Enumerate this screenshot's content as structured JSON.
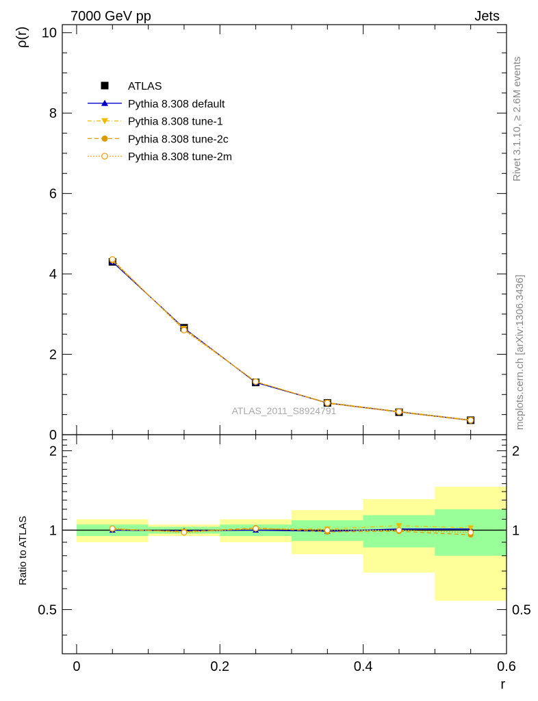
{
  "header": {
    "left": "7000 GeV pp",
    "right": "Jets"
  },
  "side_labels": {
    "top": "Rivet 3.1.10, ≥ 2.6M events",
    "bottom": "mcplots.cern.ch [arXiv:1306.3436]"
  },
  "watermark": "ATLAS_2011_S8924791",
  "colors": {
    "atlas": "#000000",
    "default": "#0000cc",
    "tune1": "#eebb00",
    "tune2c": "#dd9900",
    "tune2m": "#ee9900",
    "band_inner": "#99ff99",
    "band_outer": "#ffff99"
  },
  "chart_data": [
    {
      "type": "line",
      "panel": "main",
      "ylabel": "ρ(r)",
      "xlabel": "",
      "xlim": [
        -0.02,
        0.6
      ],
      "ylim": [
        0,
        10.2
      ],
      "y_ticks": [
        "0",
        "2",
        "4",
        "6",
        "8",
        "10"
      ],
      "x": [
        0.05,
        0.15,
        0.25,
        0.35,
        0.45,
        0.55
      ],
      "legend_position": "top-left",
      "series": [
        {
          "name": "ATLAS",
          "key": "atlas",
          "values": [
            4.3,
            2.66,
            1.3,
            0.79,
            0.56,
            0.36
          ]
        },
        {
          "name": "Pythia 8.308 default",
          "key": "default",
          "values": [
            4.3,
            2.65,
            1.3,
            0.79,
            0.57,
            0.36
          ]
        },
        {
          "name": "Pythia 8.308 tune-1",
          "key": "tune1",
          "values": [
            4.32,
            2.64,
            1.31,
            0.8,
            0.58,
            0.37
          ]
        },
        {
          "name": "Pythia 8.308 tune-2c",
          "key": "tune2c",
          "values": [
            4.34,
            2.62,
            1.32,
            0.78,
            0.56,
            0.35
          ]
        },
        {
          "name": "Pythia 8.308 tune-2m",
          "key": "tune2m",
          "values": [
            4.36,
            2.6,
            1.32,
            0.79,
            0.57,
            0.36
          ]
        }
      ]
    },
    {
      "type": "line",
      "panel": "ratio",
      "ylabel": "Ratio to ATLAS",
      "xlabel": "r",
      "xlim": [
        -0.02,
        0.6
      ],
      "ylim": [
        0.34,
        2.3
      ],
      "y_ticks": [
        "0.5",
        "1",
        "2"
      ],
      "x_ticks": [
        "0",
        "0.2",
        "0.4",
        "0.6"
      ],
      "x": [
        0.05,
        0.15,
        0.25,
        0.35,
        0.45,
        0.55
      ],
      "bins": [
        [
          0,
          0.1
        ],
        [
          0.1,
          0.2
        ],
        [
          0.2,
          0.3
        ],
        [
          0.3,
          0.4
        ],
        [
          0.4,
          0.5
        ],
        [
          0.5,
          0.6
        ]
      ],
      "band_inner": [
        [
          0.95,
          1.05
        ],
        [
          0.97,
          1.03
        ],
        [
          0.95,
          1.05
        ],
        [
          0.91,
          1.09
        ],
        [
          0.86,
          1.14
        ],
        [
          0.8,
          1.2
        ]
      ],
      "band_outer": [
        [
          0.9,
          1.1
        ],
        [
          0.95,
          1.05
        ],
        [
          0.9,
          1.1
        ],
        [
          0.81,
          1.19
        ],
        [
          0.69,
          1.31
        ],
        [
          0.54,
          1.46
        ]
      ],
      "series": [
        {
          "name": "Pythia 8.308 default",
          "key": "default",
          "values": [
            1.0,
            0.995,
            1.0,
            0.99,
            1.01,
            1.01
          ]
        },
        {
          "name": "Pythia 8.308 tune-1",
          "key": "tune1",
          "values": [
            1.005,
            0.99,
            1.01,
            1.01,
            1.04,
            1.02
          ]
        },
        {
          "name": "Pythia 8.308 tune-2c",
          "key": "tune2c",
          "values": [
            1.01,
            0.985,
            1.02,
            0.985,
            0.99,
            0.96
          ]
        },
        {
          "name": "Pythia 8.308 tune-2m",
          "key": "tune2m",
          "values": [
            1.015,
            0.98,
            1.015,
            1.0,
            1.0,
            0.98
          ]
        }
      ]
    }
  ]
}
